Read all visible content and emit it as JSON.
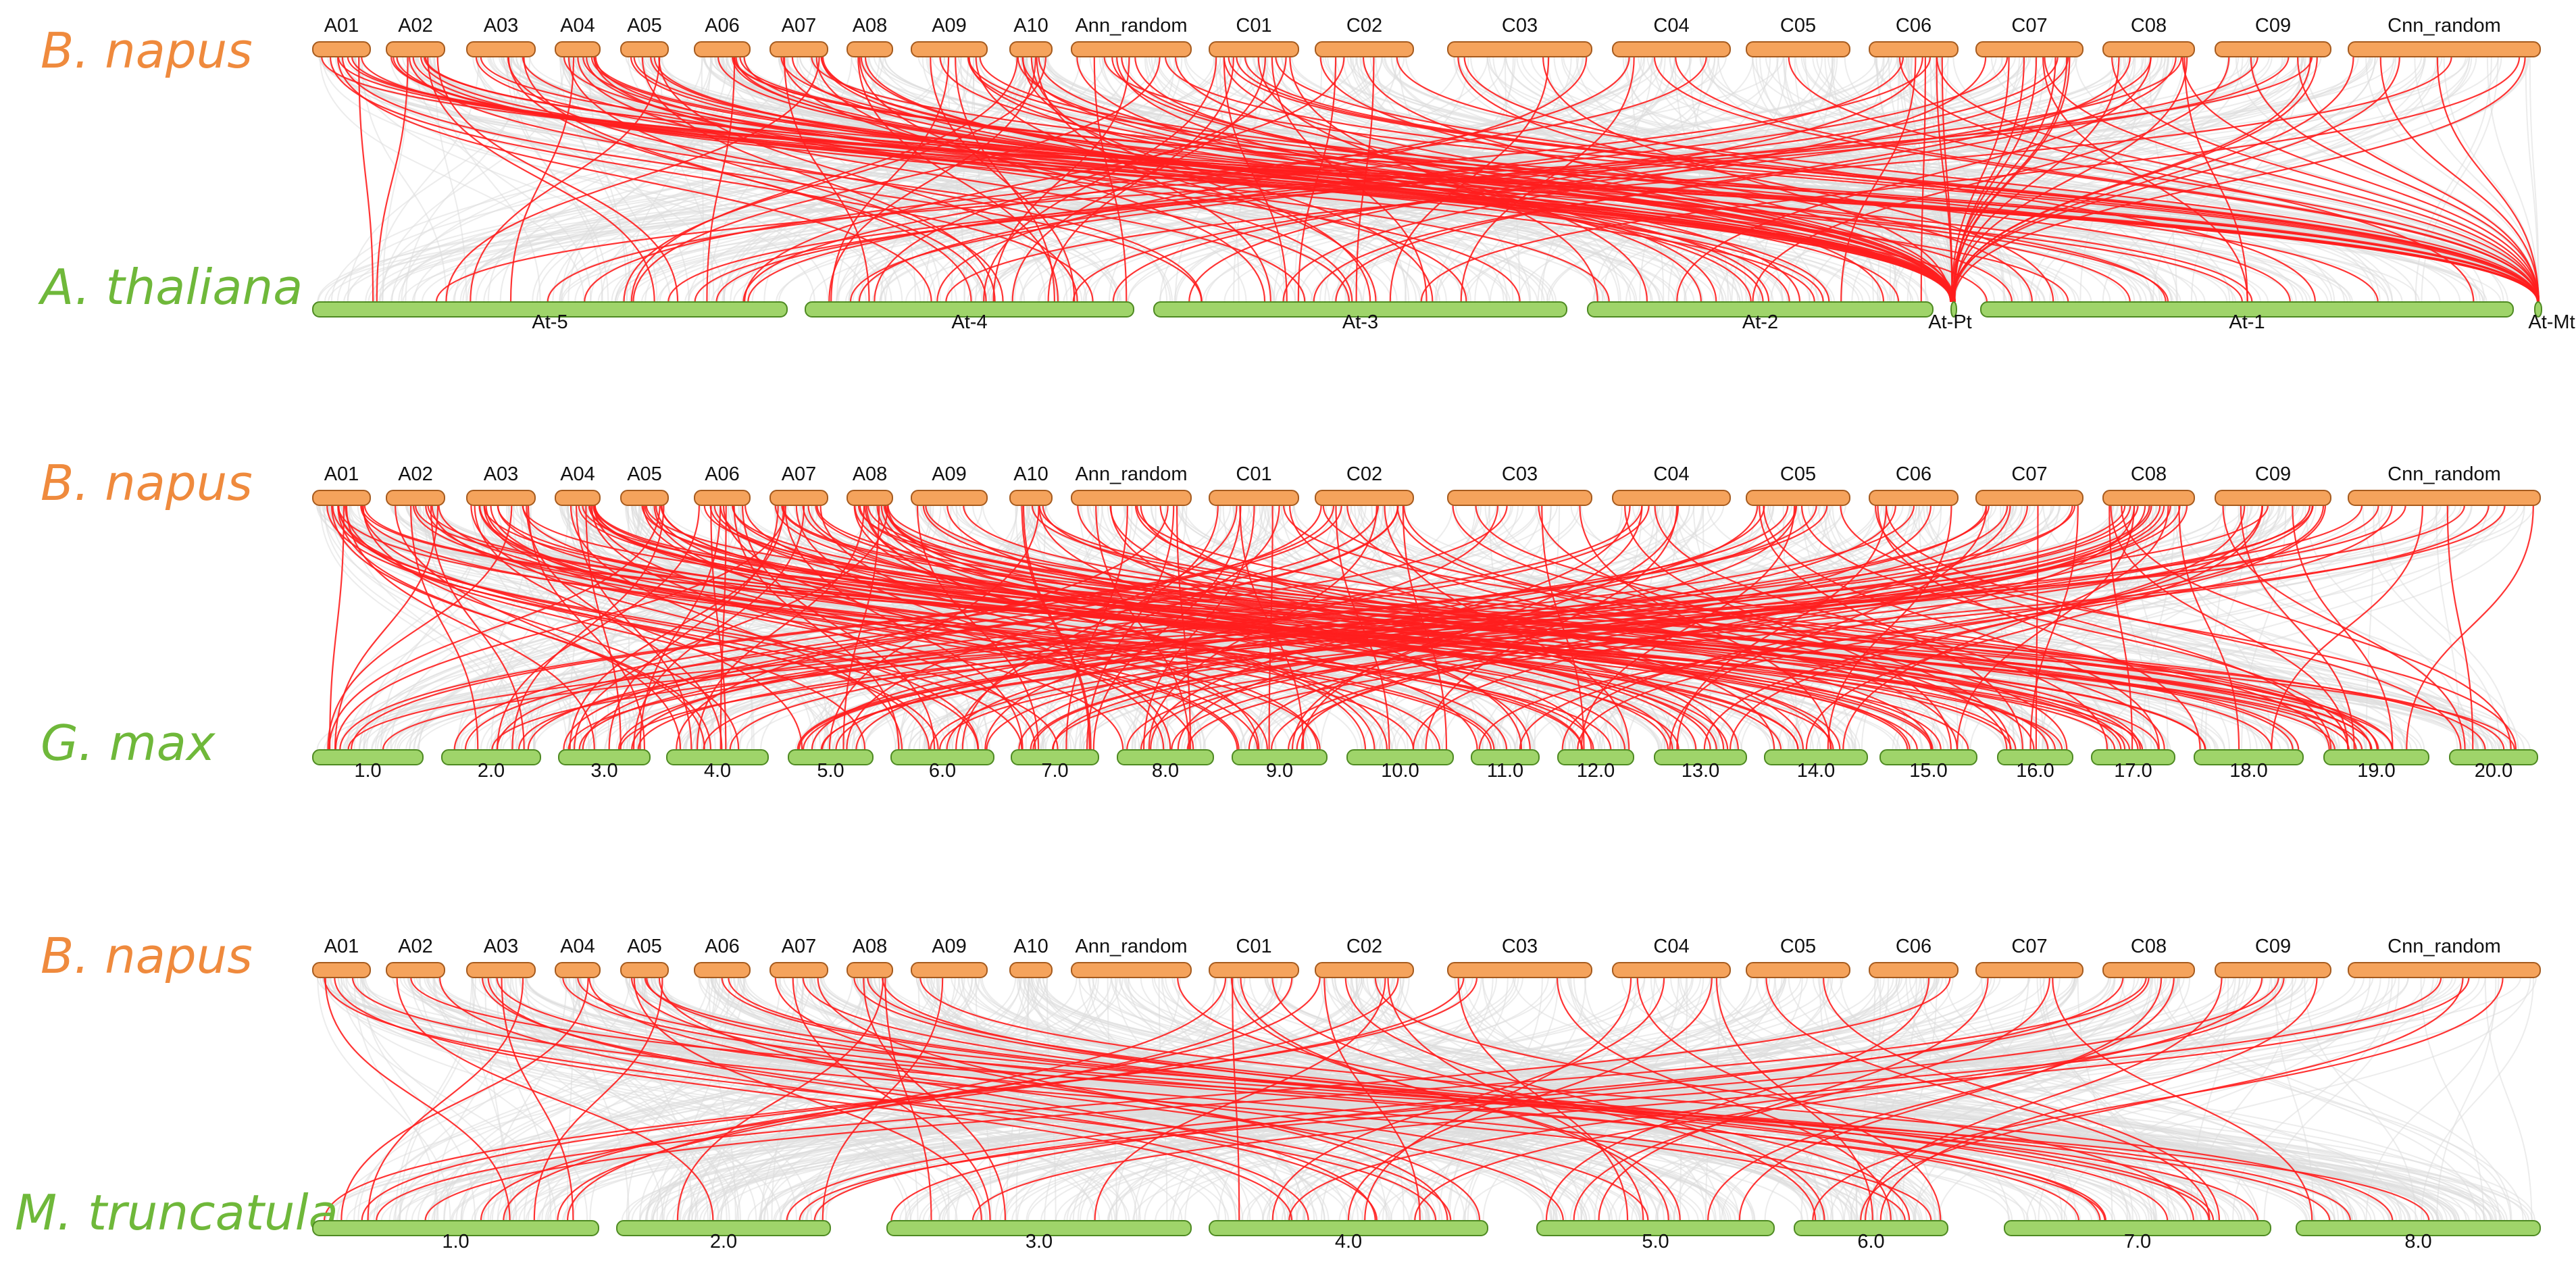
{
  "colors": {
    "query": "#f5a35c",
    "query_stroke": "#a65b1e",
    "subject": "#9fd46a",
    "subject_stroke": "#4e8a22",
    "species_query": "#ef8a3d",
    "species_subject": "#6fb83a",
    "background_link": "#dcdcdc",
    "highlight_link": "#ff1e1e"
  },
  "query_species": "B. napus",
  "query_chromosomes": [
    "A01",
    "A02",
    "A03",
    "A04",
    "A05",
    "A06",
    "A07",
    "A08",
    "A09",
    "A10",
    "Ann_random",
    "C01",
    "C02",
    "C03",
    "C04",
    "C05",
    "C06",
    "C07",
    "C08",
    "C09",
    "Cnn_random"
  ],
  "panels": [
    {
      "subject_species": "A. thaliana",
      "subject_chromosomes": [
        "At-5",
        "At-4",
        "At-3",
        "At-2",
        "At-Pt",
        "At-1",
        "At-Mt"
      ]
    },
    {
      "subject_species": "G. max",
      "subject_chromosomes": [
        "1.0",
        "2.0",
        "3.0",
        "4.0",
        "5.0",
        "6.0",
        "7.0",
        "8.0",
        "9.0",
        "10.0",
        "11.0",
        "12.0",
        "13.0",
        "14.0",
        "15.0",
        "16.0",
        "17.0",
        "18.0",
        "19.0",
        "20.0"
      ]
    },
    {
      "subject_species": "M. truncatula",
      "subject_chromosomes": [
        "1.0",
        "2.0",
        "3.0",
        "4.0",
        "5.0",
        "6.0",
        "7.0",
        "8.0"
      ]
    }
  ]
}
